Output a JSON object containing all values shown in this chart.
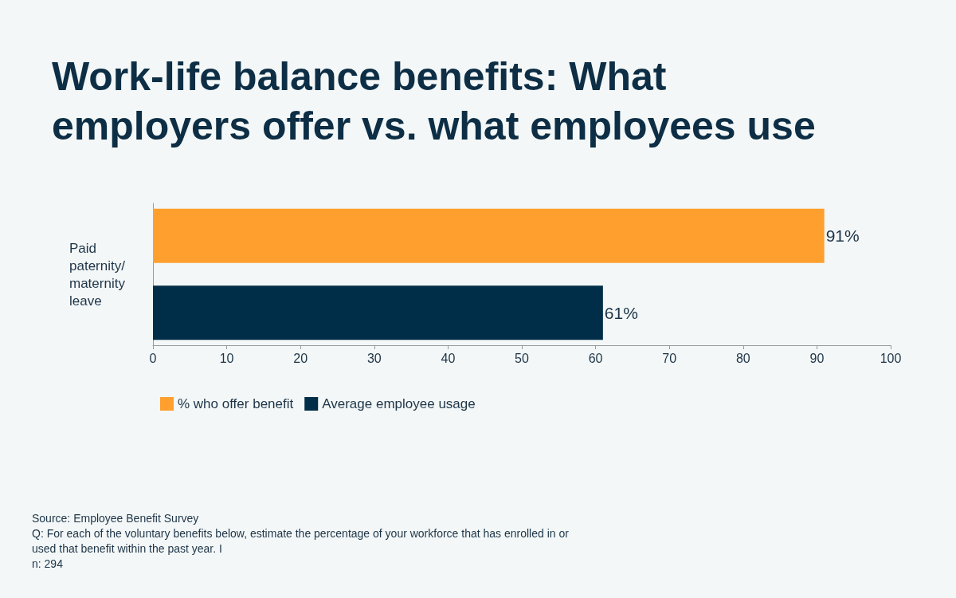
{
  "chart_data": {
    "type": "bar",
    "orientation": "horizontal",
    "title": "Work-life balance benefits: What employers offer vs. what employees use",
    "categories": [
      "Paid paternity/maternity leave"
    ],
    "series": [
      {
        "name": "% who offer benefit",
        "color": "#ff9f2e",
        "values": [
          91
        ],
        "value_labels": [
          "91%"
        ]
      },
      {
        "name": "Average employee usage",
        "color": "#002d47",
        "values": [
          61
        ],
        "value_labels": [
          "61%"
        ]
      }
    ],
    "xlim": [
      0,
      100
    ],
    "xticks": [
      0,
      10,
      20,
      30,
      40,
      50,
      60,
      70,
      80,
      90,
      100
    ],
    "grid": false,
    "legend": "bottom left",
    "annotations": [
      "Source: Employee Benefit Survey",
      "Q: For each of the voluntary benefits below, estimate the percentage of your workforce that has enrolled in or used that benefit within the past year. I",
      "n: 294"
    ]
  }
}
